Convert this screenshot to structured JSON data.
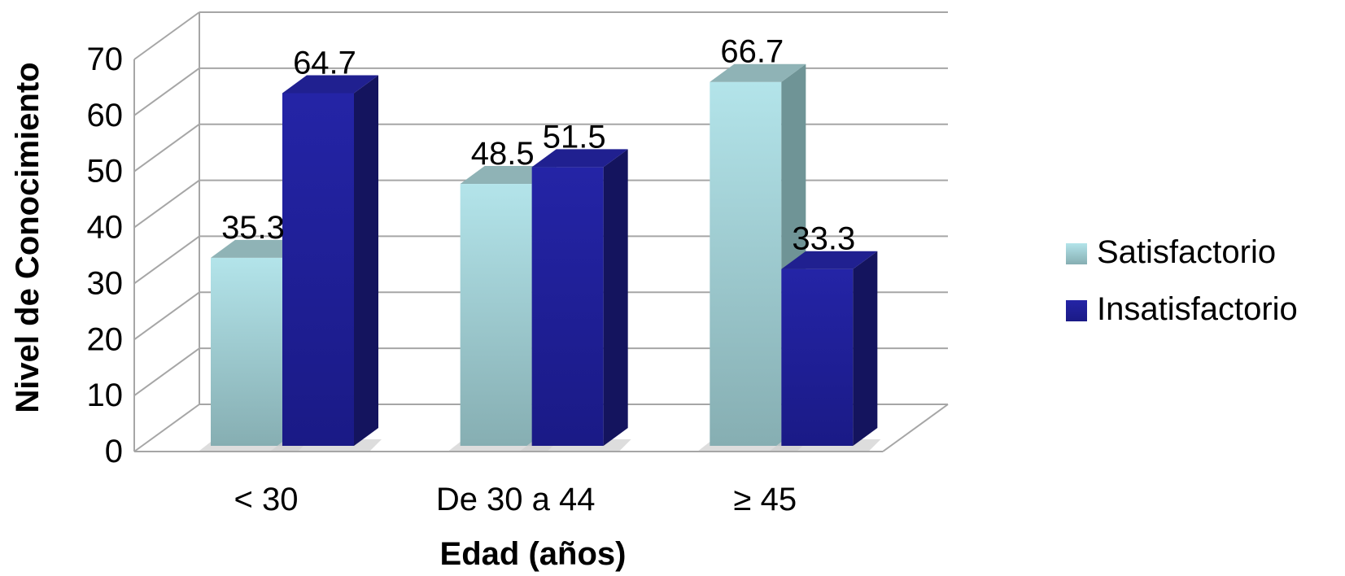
{
  "chart_data": {
    "type": "bar",
    "title": "",
    "xlabel": "Edad (años)",
    "ylabel": "Nivel de Conocimiento",
    "ylim": [
      0,
      70
    ],
    "yticks": [
      0,
      10,
      20,
      30,
      40,
      50,
      60,
      70
    ],
    "categories": [
      "< 30",
      "De 30 a 44",
      "≥ 45"
    ],
    "series": [
      {
        "name": "Satisfactorio",
        "values": [
          35.3,
          48.5,
          66.7
        ],
        "labels": [
          "35.3",
          "48.5",
          "66.7"
        ],
        "color_light": "#b3e4ea",
        "color_dark": "#86aeb2",
        "color_side": "#6f9496",
        "color_top": "#8fb3b6"
      },
      {
        "name": "Insatisfactorio",
        "values": [
          64.7,
          51.5,
          33.3
        ],
        "labels": [
          "64.7",
          "51.5",
          "33.3"
        ],
        "color_light": "#2424a6",
        "color_dark": "#1a1a86",
        "color_side": "#14145e",
        "color_top": "#202090"
      }
    ],
    "grid": true,
    "legend": "right",
    "style": "3d-clustered-column"
  }
}
